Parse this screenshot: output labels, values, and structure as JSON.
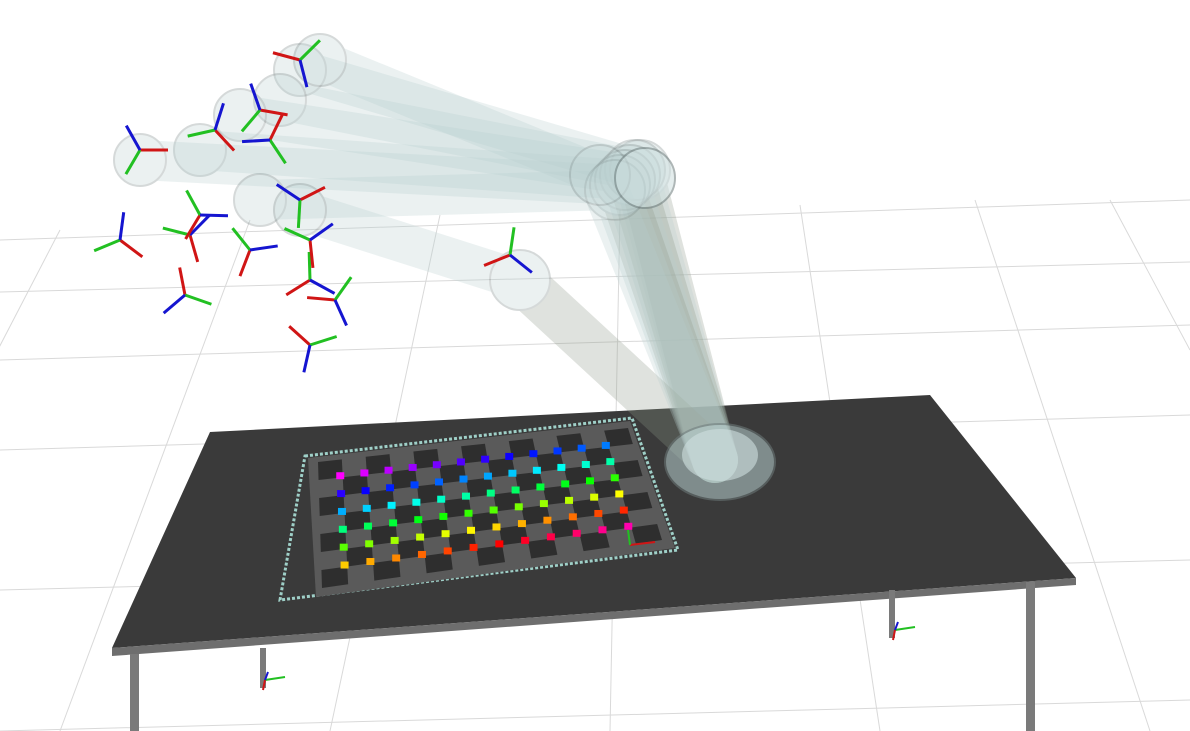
{
  "scene": {
    "background": "#ffffff",
    "grid_color": "#d9d9d9",
    "table_top_color": "#3a3a3a",
    "table_edge_color": "#6e6e6e",
    "table_leg_color": "#7a7a7a",
    "board_color": "#5a5a5a",
    "board_border_color": "#9fd0c8",
    "robot_link_color": "#b8cfcf",
    "robot_link_dark_color": "#8f9a8a",
    "axis_colors": {
      "x": "#d01515",
      "y": "#22c022",
      "z": "#1515d0"
    },
    "marker_rows": 6,
    "marker_cols": 12,
    "robot_poses": 8,
    "frame_count": 16
  }
}
